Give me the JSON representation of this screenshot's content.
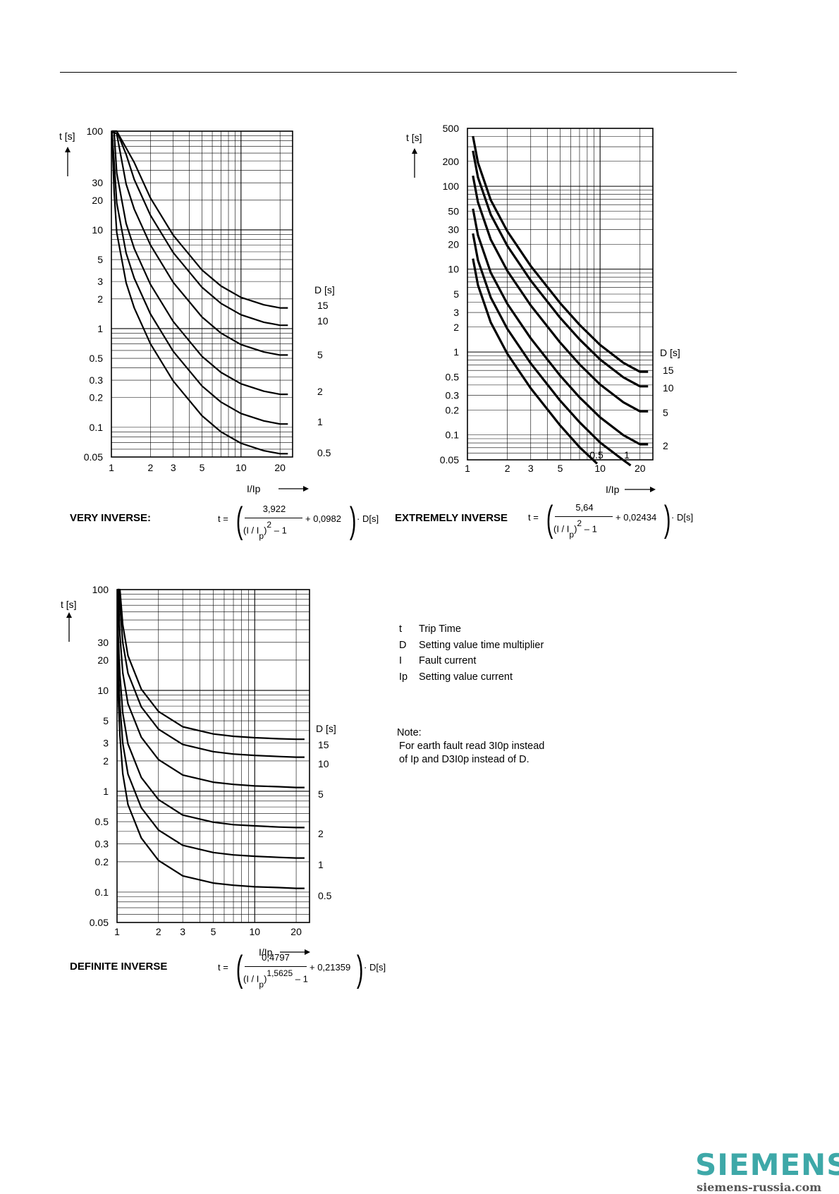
{
  "chart_data": [
    {
      "type": "line",
      "xscale": "log",
      "yscale": "log",
      "xlabel": "I/Ip",
      "ylabel": "t [s]",
      "xlim": [
        1,
        25
      ],
      "ylim": [
        0.05,
        100
      ],
      "x_ticks": [
        "1",
        "2",
        "3",
        "5",
        "10",
        "20"
      ],
      "y_ticks": [
        "100",
        "30",
        "20",
        "10",
        "5",
        "3",
        "2",
        "1",
        "0.5",
        "0.3",
        "0.2",
        "0.1",
        "0.05"
      ],
      "legend_title": "D [s]",
      "series": [
        {
          "name": "15",
          "values": [
            [
              1.01,
              100
            ],
            [
              1.1,
              100
            ],
            [
              1.5,
              48.2
            ],
            [
              2,
              21.1
            ],
            [
              3,
              8.83
            ],
            [
              5,
              3.92
            ],
            [
              7,
              2.7
            ],
            [
              10,
              2.07
            ],
            [
              15,
              1.74
            ],
            [
              20,
              1.62
            ],
            [
              23,
              1.62
            ]
          ]
        },
        {
          "name": "10",
          "values": [
            [
              1.01,
              100
            ],
            [
              1.1,
              100
            ],
            [
              1.3,
              58.2
            ],
            [
              1.5,
              32.4
            ],
            [
              2,
              14.1
            ],
            [
              3,
              5.88
            ],
            [
              5,
              2.62
            ],
            [
              7,
              1.8
            ],
            [
              10,
              1.38
            ],
            [
              15,
              1.16
            ],
            [
              20,
              1.08
            ],
            [
              23,
              1.08
            ]
          ]
        },
        {
          "name": "5",
          "values": [
            [
              1.01,
              100
            ],
            [
              1.1,
              93.9
            ],
            [
              1.3,
              29.1
            ],
            [
              1.5,
              16.2
            ],
            [
              2,
              7.05
            ],
            [
              3,
              2.94
            ],
            [
              5,
              1.31
            ],
            [
              7,
              0.9
            ],
            [
              10,
              0.689
            ],
            [
              15,
              0.579
            ],
            [
              20,
              0.54
            ],
            [
              23,
              0.54
            ]
          ]
        },
        {
          "name": "2",
          "values": [
            [
              1.01,
              100
            ],
            [
              1.05,
              95.9
            ],
            [
              1.1,
              37.5
            ],
            [
              1.3,
              11.6
            ],
            [
              1.5,
              6.47
            ],
            [
              2,
              2.81
            ],
            [
              3,
              1.18
            ],
            [
              5,
              0.523
            ],
            [
              7,
              0.36
            ],
            [
              10,
              0.276
            ],
            [
              15,
              0.232
            ],
            [
              20,
              0.216
            ],
            [
              23,
              0.216
            ]
          ]
        },
        {
          "name": "1",
          "values": [
            [
              1.01,
              100
            ],
            [
              1.05,
              48.0
            ],
            [
              1.1,
              18.7
            ],
            [
              1.3,
              5.82
            ],
            [
              1.5,
              3.24
            ],
            [
              2,
              1.41
            ],
            [
              3,
              0.588
            ],
            [
              5,
              0.262
            ],
            [
              7,
              0.18
            ],
            [
              10,
              0.138
            ],
            [
              15,
              0.116
            ],
            [
              20,
              0.108
            ],
            [
              23,
              0.108
            ]
          ]
        },
        {
          "name": "0.5",
          "values": [
            [
              1.01,
              97.6
            ],
            [
              1.05,
              24.0
            ],
            [
              1.1,
              9.38
            ],
            [
              1.3,
              2.91
            ],
            [
              1.5,
              1.62
            ],
            [
              2,
              0.703
            ],
            [
              3,
              0.294
            ],
            [
              5,
              0.131
            ],
            [
              7,
              0.09
            ],
            [
              10,
              0.0689
            ],
            [
              15,
              0.0579
            ],
            [
              20,
              0.054
            ],
            [
              23,
              0.054
            ]
          ]
        }
      ],
      "formula": {
        "label": "VERY INVERSE:",
        "lhs": "t =",
        "numerator": "3,922",
        "den_base": "(I / I",
        "den_sub": "p",
        "den_close": ")",
        "den_exp": "2",
        "den_tail": "– 1",
        "tail": "+ 0,0982",
        "factor": "· D[s]"
      }
    },
    {
      "type": "line",
      "xscale": "log",
      "yscale": "log",
      "xlabel": "I/Ip",
      "ylabel": "t [s]",
      "xlim": [
        1,
        25
      ],
      "ylim": [
        0.05,
        500
      ],
      "x_ticks": [
        "1",
        "2",
        "3",
        "5",
        "10",
        "20"
      ],
      "y_ticks": [
        "500",
        "200",
        "100",
        "50",
        "30",
        "20",
        "10",
        "5",
        "3",
        "2",
        "1",
        "0.5",
        "0.3",
        "0.2",
        "0.1",
        "0.05"
      ],
      "legend_title": "D [s]",
      "series": [
        {
          "name": "15",
          "values": [
            [
              1.1,
              402
            ],
            [
              1.2,
              193
            ],
            [
              1.5,
              68.0
            ],
            [
              2,
              28.6
            ],
            [
              3,
              10.9
            ],
            [
              5,
              3.89
            ],
            [
              7,
              2.13
            ],
            [
              10,
              1.22
            ],
            [
              15,
              0.74
            ],
            [
              20,
              0.577
            ],
            [
              23,
              0.577
            ]
          ]
        },
        {
          "name": "10",
          "values": [
            [
              1.1,
              268
            ],
            [
              1.2,
              128
            ],
            [
              1.5,
              45.4
            ],
            [
              2,
              19.1
            ],
            [
              3,
              7.29
            ],
            [
              5,
              2.59
            ],
            [
              7,
              1.42
            ],
            [
              10,
              0.813
            ],
            [
              15,
              0.494
            ],
            [
              20,
              0.385
            ],
            [
              23,
              0.385
            ]
          ]
        },
        {
          "name": "5",
          "values": [
            [
              1.1,
              134
            ],
            [
              1.2,
              64.2
            ],
            [
              1.5,
              22.7
            ],
            [
              2,
              9.52
            ],
            [
              3,
              3.65
            ],
            [
              5,
              1.3
            ],
            [
              7,
              0.71
            ],
            [
              10,
              0.406
            ],
            [
              15,
              0.247
            ],
            [
              20,
              0.192
            ],
            [
              23,
              0.192
            ]
          ]
        },
        {
          "name": "2",
          "values": [
            [
              1.1,
              53.7
            ],
            [
              1.2,
              25.7
            ],
            [
              1.5,
              9.07
            ],
            [
              2,
              3.81
            ],
            [
              3,
              1.46
            ],
            [
              5,
              0.519
            ],
            [
              7,
              0.284
            ],
            [
              10,
              0.163
            ],
            [
              15,
              0.099
            ],
            [
              20,
              0.077
            ],
            [
              23,
              0.077
            ]
          ]
        },
        {
          "name": "1",
          "values": [
            [
              1.1,
              26.9
            ],
            [
              1.2,
              12.8
            ],
            [
              1.5,
              4.54
            ],
            [
              2,
              1.9
            ],
            [
              3,
              0.729
            ],
            [
              5,
              0.259
            ],
            [
              7,
              0.142
            ],
            [
              10,
              0.081
            ],
            [
              15,
              0.0494
            ],
            [
              17,
              0.0428
            ]
          ]
        },
        {
          "name": "0.5",
          "values": [
            [
              1.1,
              13.4
            ],
            [
              1.2,
              6.42
            ],
            [
              1.5,
              2.27
            ],
            [
              2,
              0.952
            ],
            [
              3,
              0.365
            ],
            [
              5,
              0.13
            ],
            [
              7,
              0.071
            ],
            [
              9.5,
              0.045
            ]
          ]
        }
      ],
      "inner_labels": [
        "0.5",
        "1"
      ],
      "formula": {
        "label": "EXTREMELY INVERSE",
        "lhs": "t =",
        "numerator": "5,64",
        "den_base": "(I / I",
        "den_sub": "p",
        "den_close": ")",
        "den_exp": "2",
        "den_tail": "– 1",
        "tail": "+ 0,02434",
        "factor": "· D[s]"
      }
    },
    {
      "type": "line",
      "xscale": "log",
      "yscale": "log",
      "xlabel": "I/Ip",
      "ylabel": "t [s]",
      "xlim": [
        1,
        25
      ],
      "ylim": [
        0.05,
        100
      ],
      "x_ticks": [
        "1",
        "2",
        "3",
        "5",
        "10",
        "20"
      ],
      "y_ticks": [
        "100",
        "30",
        "20",
        "10",
        "5",
        "3",
        "2",
        "1",
        "0.5",
        "0.3",
        "0.2",
        "0.1",
        "0.05"
      ],
      "legend_title": "D [s]",
      "series": [
        {
          "name": "15",
          "values": [
            [
              1.01,
              100
            ],
            [
              1.05,
              100
            ],
            [
              1.1,
              45.0
            ],
            [
              1.2,
              22.1
            ],
            [
              1.5,
              10.3
            ],
            [
              2,
              6.19
            ],
            [
              3,
              4.36
            ],
            [
              5,
              3.7
            ],
            [
              7,
              3.51
            ],
            [
              10,
              3.4
            ],
            [
              15,
              3.32
            ],
            [
              20,
              3.28
            ],
            [
              23,
              3.28
            ]
          ]
        },
        {
          "name": "10",
          "values": [
            [
              1.01,
              100
            ],
            [
              1.03,
              100
            ],
            [
              1.1,
              30.0
            ],
            [
              1.2,
              14.8
            ],
            [
              1.5,
              6.87
            ],
            [
              2,
              4.13
            ],
            [
              3,
              2.91
            ],
            [
              5,
              2.47
            ],
            [
              7,
              2.34
            ],
            [
              10,
              2.27
            ],
            [
              15,
              2.21
            ],
            [
              20,
              2.18
            ],
            [
              23,
              2.18
            ]
          ]
        },
        {
          "name": "5",
          "values": [
            [
              1.01,
              100
            ],
            [
              1.02,
              88.0
            ],
            [
              1.05,
              35.6
            ],
            [
              1.1,
              15.0
            ],
            [
              1.2,
              7.38
            ],
            [
              1.5,
              3.44
            ],
            [
              2,
              2.06
            ],
            [
              3,
              1.45
            ],
            [
              5,
              1.23
            ],
            [
              7,
              1.17
            ],
            [
              10,
              1.13
            ],
            [
              15,
              1.11
            ],
            [
              20,
              1.09
            ],
            [
              23,
              1.09
            ]
          ]
        },
        {
          "name": "2",
          "values": [
            [
              1.01,
              100
            ],
            [
              1.02,
              35.2
            ],
            [
              1.05,
              14.2
            ],
            [
              1.1,
              5.99
            ],
            [
              1.2,
              2.95
            ],
            [
              1.5,
              1.37
            ],
            [
              2,
              0.826
            ],
            [
              3,
              0.581
            ],
            [
              5,
              0.494
            ],
            [
              7,
              0.467
            ],
            [
              10,
              0.454
            ],
            [
              15,
              0.442
            ],
            [
              20,
              0.437
            ],
            [
              23,
              0.437
            ]
          ]
        },
        {
          "name": "1",
          "values": [
            [
              1.01,
              100
            ],
            [
              1.02,
              17.6
            ],
            [
              1.05,
              7.12
            ],
            [
              1.1,
              3.0
            ],
            [
              1.2,
              1.48
            ],
            [
              1.5,
              0.687
            ],
            [
              2,
              0.413
            ],
            [
              3,
              0.291
            ],
            [
              5,
              0.247
            ],
            [
              7,
              0.234
            ],
            [
              10,
              0.227
            ],
            [
              15,
              0.221
            ],
            [
              20,
              0.218
            ],
            [
              23,
              0.218
            ]
          ]
        },
        {
          "name": "0.5",
          "values": [
            [
              1.01,
              57.0
            ],
            [
              1.02,
              8.8
            ],
            [
              1.05,
              3.56
            ],
            [
              1.1,
              1.5
            ],
            [
              1.2,
              0.738
            ],
            [
              1.5,
              0.344
            ],
            [
              2,
              0.206
            ],
            [
              3,
              0.145
            ],
            [
              5,
              0.123
            ],
            [
              7,
              0.117
            ],
            [
              10,
              0.113
            ],
            [
              15,
              0.111
            ],
            [
              20,
              0.109
            ],
            [
              23,
              0.109
            ]
          ]
        }
      ],
      "formula": {
        "label": "DEFINITE INVERSE",
        "lhs": "t =",
        "numerator": "0,4797",
        "den_base": "(I / I",
        "den_sub": "p",
        "den_close": ")",
        "den_exp": "1,5625",
        "den_tail": "– 1",
        "tail": "+ 0,21359",
        "factor": "· D[s]"
      }
    }
  ],
  "legend": {
    "rows": [
      {
        "sym": "t",
        "text": "Trip Time"
      },
      {
        "sym": "D",
        "text": "Setting value time multiplier"
      },
      {
        "sym": "I",
        "text": "Fault current"
      },
      {
        "sym": "Ip",
        "text": "Setting value current"
      }
    ]
  },
  "note": {
    "title": "Note:",
    "line1": "For earth fault read 3I0p instead",
    "line2": "of Ip and D3I0p instead of D."
  },
  "logo": {
    "name": "SIEMENS",
    "site": "siemens-russia.com",
    "color": "#3ea8a8"
  }
}
